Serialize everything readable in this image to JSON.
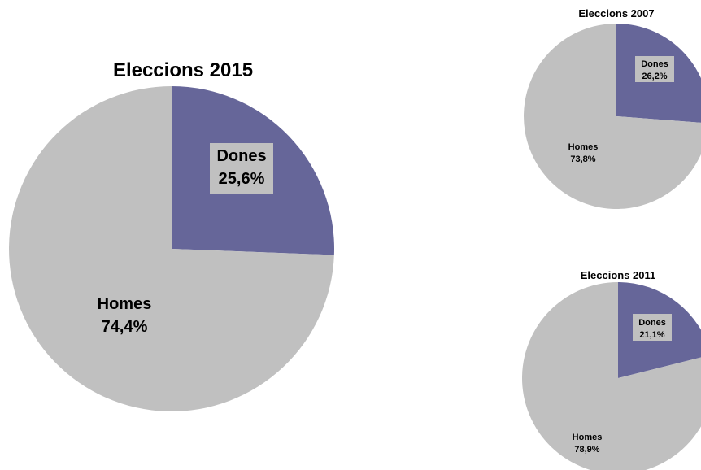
{
  "colors": {
    "dones": "#666699",
    "homes": "#c0c0c0",
    "label_box": "#c0c0c0",
    "background": "#ffffff"
  },
  "chart_data": [
    {
      "type": "pie",
      "title": "Eleccions 2015",
      "slices": [
        {
          "label": "Dones",
          "value": 25.6,
          "value_label": "25,6%",
          "color": "#666699"
        },
        {
          "label": "Homes",
          "value": 74.4,
          "value_label": "74,4%",
          "color": "#c0c0c0"
        }
      ]
    },
    {
      "type": "pie",
      "title": "Eleccions 2007",
      "slices": [
        {
          "label": "Dones",
          "value": 26.2,
          "value_label": "26,2%",
          "color": "#666699"
        },
        {
          "label": "Homes",
          "value": 73.8,
          "value_label": "73,8%",
          "color": "#c0c0c0"
        }
      ]
    },
    {
      "type": "pie",
      "title": "Eleccions 2011",
      "slices": [
        {
          "label": "Dones",
          "value": 21.1,
          "value_label": "21,1%",
          "color": "#666699"
        },
        {
          "label": "Homes",
          "value": 78.9,
          "value_label": "78,9%",
          "color": "#c0c0c0"
        }
      ]
    }
  ]
}
